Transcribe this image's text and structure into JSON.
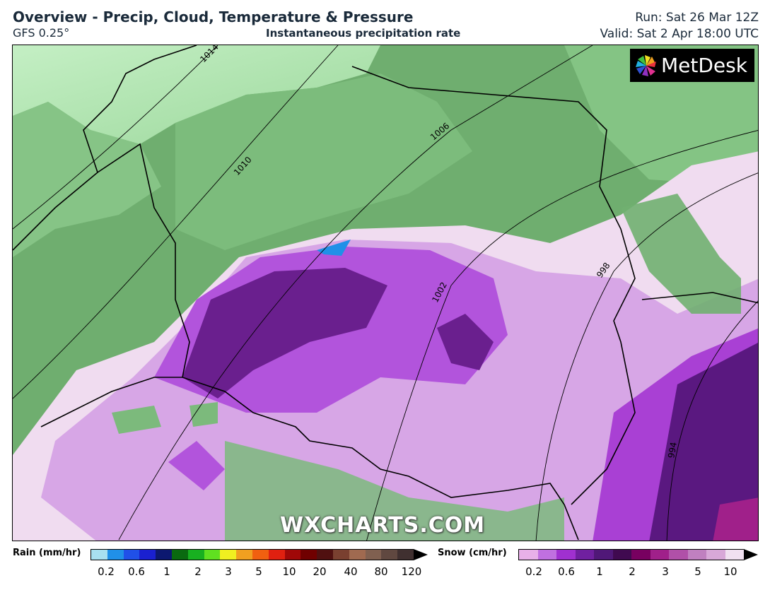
{
  "header": {
    "title": "Overview - Precip, Cloud, Temperature & Pressure",
    "model": "GFS 0.25°",
    "subtitle": "Instantaneous precipitation rate",
    "run": "Run: Sat 26 Mar 12Z",
    "valid": "Valid: Sat 2 Apr 18:00 UTC"
  },
  "logo": {
    "text": "MetDesk",
    "icon": "metdesk-pinwheel-icon"
  },
  "watermark": "WXCHARTS.COM",
  "isobars": [
    "1014",
    "1010",
    "1006",
    "1002",
    "998",
    "994"
  ],
  "legend": {
    "rain": {
      "title": "Rain (mm/hr)",
      "ticks": [
        "0.2",
        "0.6",
        "1",
        "2",
        "3",
        "5",
        "10",
        "20",
        "40",
        "80",
        "120"
      ],
      "colors": [
        "#a8e0f0",
        "#2090e8",
        "#2050e8",
        "#1a20d0",
        "#0c1870",
        "#0a6a10",
        "#18b020",
        "#60e020",
        "#f0f020",
        "#f0a020",
        "#f06010",
        "#e02010",
        "#a00808",
        "#700000",
        "#501010",
        "#7a4030",
        "#a06a50",
        "#806050",
        "#604840",
        "#403030"
      ]
    },
    "snow": {
      "title": "Snow (cm/hr)",
      "ticks": [
        "0.2",
        "0.6",
        "1",
        "2",
        "3",
        "5",
        "10"
      ],
      "colors": [
        "#e8b0e8",
        "#c070e0",
        "#a030d0",
        "#7020a0",
        "#501878",
        "#400a50",
        "#780060",
        "#a0208a",
        "#b050a8",
        "#c080c0",
        "#d8a8d8",
        "#f0e0f0"
      ]
    }
  },
  "colors": {
    "land_green": "#6fae6f",
    "sea_green": "#bdeebd",
    "snow_light": "#f0dcf0",
    "snow_mid": "#c88ae0",
    "snow_strong": "#a83ed8",
    "snow_deep": "#6a1f8e",
    "snow_darkest": "#4a0f60"
  }
}
